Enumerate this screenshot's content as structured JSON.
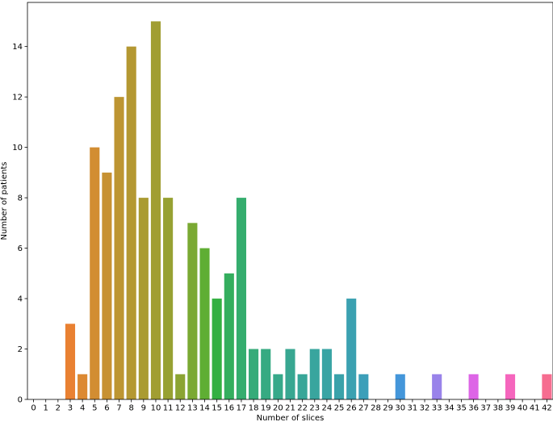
{
  "chart_data": {
    "type": "bar",
    "title": "",
    "xlabel": "Number of slices",
    "ylabel": "Number of patients",
    "ylim": [
      0,
      15.75
    ],
    "yticks": [
      0,
      2,
      4,
      6,
      8,
      10,
      12,
      14
    ],
    "grid": false,
    "legend": "none",
    "categories": [
      "0",
      "1",
      "2",
      "3",
      "4",
      "5",
      "6",
      "7",
      "8",
      "9",
      "10",
      "11",
      "12",
      "13",
      "14",
      "15",
      "16",
      "17",
      "18",
      "19",
      "20",
      "21",
      "22",
      "23",
      "24",
      "25",
      "26",
      "27",
      "28",
      "29",
      "30",
      "31",
      "32",
      "33",
      "34",
      "35",
      "36",
      "37",
      "38",
      "39",
      "40",
      "41",
      "42"
    ],
    "values": [
      0,
      0,
      0,
      3,
      1,
      10,
      9,
      12,
      14,
      8,
      15,
      8,
      1,
      7,
      6,
      4,
      5,
      8,
      2,
      2,
      1,
      2,
      1,
      2,
      2,
      1,
      4,
      1,
      0,
      0,
      1,
      0,
      0,
      1,
      0,
      0,
      1,
      0,
      0,
      1,
      0,
      0,
      1
    ],
    "colors": [
      "#f77189",
      "#f7754f",
      "#f37932",
      "#e98132",
      "#dc8932",
      "#d28d32",
      "#c79132",
      "#bd9532",
      "#b49832",
      "#aa9b32",
      "#a19e32",
      "#97a132",
      "#8ba433",
      "#7aa933",
      "#5fae33",
      "#33b042",
      "#34ae5e",
      "#35ad6e",
      "#36ab79",
      "#36aa82",
      "#37a98a",
      "#38a791",
      "#38a698",
      "#39a59e",
      "#39a4a4",
      "#3aa2aa",
      "#3ba1b1",
      "#3c9fb9",
      "#3d9dc2",
      "#3f9acd",
      "#4496da",
      "#5e91e4",
      "#7d8ae8",
      "#9983ea",
      "#b07bea",
      "#c672e9",
      "#dd65e6",
      "#ee5fd9",
      "#f463cb",
      "#f566bd",
      "#f568ae",
      "#f56b9f",
      "#f66d90"
    ]
  }
}
